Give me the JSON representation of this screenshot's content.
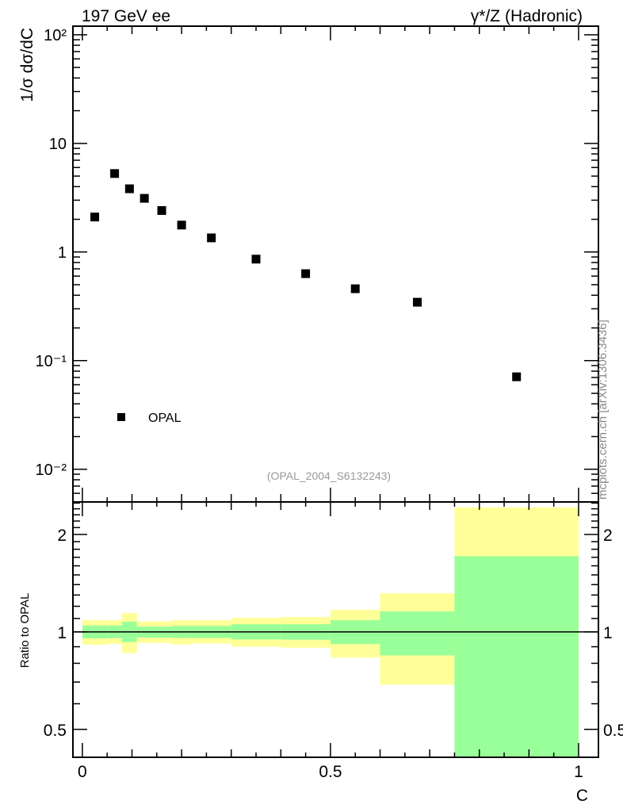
{
  "header": {
    "left_label": "197 GeV ee",
    "right_label": "γ*/Z (Hadronic)"
  },
  "watermark": "mcplots.cern.ch [arXiv:1306.3436]",
  "analysis_id": "(OPAL_2004_S6132243)",
  "colors": {
    "marker": "#000000",
    "stat_band": "#99ff99",
    "total_band": "#ffff99",
    "watermark": "#888888"
  },
  "chart_data": [
    {
      "type": "scatter",
      "title": "",
      "xlabel": "",
      "ylabel": "1/σ dσ/dC",
      "yscale": "log",
      "xlim": [
        -0.019,
        1.04
      ],
      "ylim": [
        0.005,
        120
      ],
      "grid": false,
      "y_ticks": [
        {
          "value": 0.01,
          "label": "10⁻²"
        },
        {
          "value": 0.1,
          "label": "10⁻¹"
        },
        {
          "value": 1,
          "label": "1"
        },
        {
          "value": 10,
          "label": "10"
        },
        {
          "value": 100,
          "label": "10²"
        }
      ],
      "legend": {
        "placement": "bottom-left",
        "entries": [
          "OPAL"
        ]
      },
      "series": [
        {
          "name": "OPAL",
          "x": [
            0.025,
            0.065,
            0.095,
            0.125,
            0.16,
            0.2,
            0.26,
            0.35,
            0.45,
            0.55,
            0.675,
            0.875
          ],
          "y": [
            2.1,
            5.28,
            3.82,
            3.12,
            2.41,
            1.77,
            1.35,
            0.86,
            0.632,
            0.459,
            0.345,
            0.071
          ]
        }
      ]
    },
    {
      "type": "area",
      "title": "",
      "xlabel": "C",
      "ylabel": "Ratio to OPAL",
      "yscale": "log",
      "xlim": [
        -0.019,
        1.04
      ],
      "ylim": [
        0.41,
        2.52
      ],
      "grid": false,
      "x_ticks": [
        {
          "value": 0,
          "label": "0"
        },
        {
          "value": 0.5,
          "label": "0.5"
        },
        {
          "value": 1,
          "label": "1"
        }
      ],
      "y_ticks": [
        {
          "value": 0.5,
          "label": "0.5"
        },
        {
          "value": 1,
          "label": "1"
        },
        {
          "value": 2,
          "label": "2"
        }
      ],
      "reference_line": 1,
      "bins": [
        {
          "lo": 0.0,
          "hi": 0.05,
          "stat": [
            0.955,
            1.046
          ],
          "total": [
            0.913,
            1.087
          ]
        },
        {
          "lo": 0.05,
          "hi": 0.08,
          "stat": [
            0.957,
            1.046
          ],
          "total": [
            0.918,
            1.087
          ]
        },
        {
          "lo": 0.08,
          "hi": 0.11,
          "stat": [
            0.931,
            1.075
          ],
          "total": [
            0.86,
            1.144
          ]
        },
        {
          "lo": 0.11,
          "hi": 0.14,
          "stat": [
            0.961,
            1.038
          ],
          "total": [
            0.925,
            1.078
          ]
        },
        {
          "lo": 0.14,
          "hi": 0.18,
          "stat": [
            0.961,
            1.038
          ],
          "total": [
            0.925,
            1.078
          ]
        },
        {
          "lo": 0.18,
          "hi": 0.22,
          "stat": [
            0.958,
            1.044
          ],
          "total": [
            0.915,
            1.087
          ]
        },
        {
          "lo": 0.22,
          "hi": 0.3,
          "stat": [
            0.958,
            1.044
          ],
          "total": [
            0.921,
            1.087
          ]
        },
        {
          "lo": 0.3,
          "hi": 0.4,
          "stat": [
            0.948,
            1.056
          ],
          "total": [
            0.9,
            1.105
          ]
        },
        {
          "lo": 0.4,
          "hi": 0.5,
          "stat": [
            0.946,
            1.056
          ],
          "total": [
            0.894,
            1.112
          ]
        },
        {
          "lo": 0.5,
          "hi": 0.6,
          "stat": [
            0.917,
            1.087
          ],
          "total": [
            0.833,
            1.17
          ]
        },
        {
          "lo": 0.6,
          "hi": 0.75,
          "stat": [
            0.846,
            1.157
          ],
          "total": [
            0.687,
            1.316
          ]
        },
        {
          "lo": 0.75,
          "hi": 1.0,
          "stat": [
            0.3,
            1.713
          ],
          "total": [
            0.3,
            2.425
          ]
        }
      ]
    }
  ]
}
